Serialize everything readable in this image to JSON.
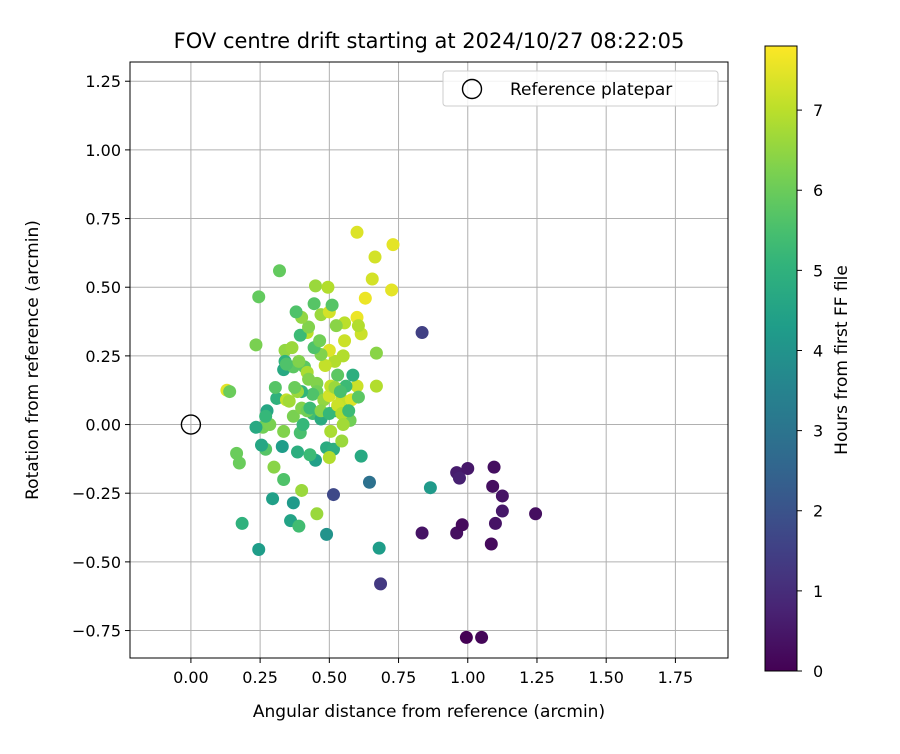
{
  "chart_data": {
    "type": "scatter",
    "title": "FOV centre drift starting at 2024/10/27 08:22:05",
    "xlabel": "Angular distance from reference (arcmin)",
    "ylabel": "Rotation from reference (arcmin)",
    "xlim": [
      -0.22,
      1.94
    ],
    "ylim": [
      -0.85,
      1.32
    ],
    "xticks": [
      0.0,
      0.25,
      0.5,
      0.75,
      1.0,
      1.25,
      1.5,
      1.75
    ],
    "xtick_labels": [
      "0.00",
      "0.25",
      "0.50",
      "0.75",
      "1.00",
      "1.25",
      "1.50",
      "1.75"
    ],
    "yticks": [
      -0.75,
      -0.5,
      -0.25,
      0.0,
      0.25,
      0.5,
      0.75,
      1.0,
      1.25
    ],
    "ytick_labels": [
      "−0.75",
      "−0.50",
      "−0.25",
      "0.00",
      "0.25",
      "0.50",
      "0.75",
      "1.00",
      "1.25"
    ],
    "grid": true,
    "legend": {
      "placement": "top-right",
      "entries": [
        "Reference platepar"
      ]
    },
    "reference_point": {
      "x": 0.0,
      "y": 0.0,
      "label": "Reference platepar"
    },
    "colorbar": {
      "label": "Hours from first FF file",
      "colormap": "viridis",
      "range": [
        0,
        7.8
      ],
      "ticks": [
        0,
        1,
        2,
        3,
        4,
        5,
        6,
        7
      ],
      "tick_labels": [
        "0",
        "1",
        "2",
        "3",
        "4",
        "5",
        "6",
        "7"
      ]
    },
    "points": [
      [
        0.995,
        -0.775,
        0.0
      ],
      [
        1.05,
        -0.775,
        0.1
      ],
      [
        0.96,
        -0.395,
        0.3
      ],
      [
        1.085,
        -0.435,
        0.2
      ],
      [
        1.09,
        -0.225,
        0.3
      ],
      [
        1.125,
        -0.26,
        0.4
      ],
      [
        1.125,
        -0.315,
        0.5
      ],
      [
        1.245,
        -0.325,
        0.3
      ],
      [
        1.1,
        -0.36,
        0.4
      ],
      [
        0.98,
        -0.365,
        0.2
      ],
      [
        0.835,
        -0.395,
        0.4
      ],
      [
        0.96,
        -0.175,
        0.6
      ],
      [
        1.0,
        -0.16,
        0.5
      ],
      [
        1.095,
        -0.155,
        0.3
      ],
      [
        0.97,
        -0.195,
        0.7
      ],
      [
        0.835,
        0.335,
        1.5
      ],
      [
        0.685,
        -0.58,
        1.3
      ],
      [
        0.515,
        -0.255,
        1.7
      ],
      [
        0.645,
        -0.21,
        2.9
      ],
      [
        0.865,
        -0.23,
        4.2
      ],
      [
        0.68,
        -0.45,
        4.3
      ],
      [
        0.49,
        -0.4,
        4.0
      ],
      [
        0.245,
        -0.455,
        4.3
      ],
      [
        0.185,
        -0.36,
        5.0
      ],
      [
        0.295,
        -0.27,
        4.4
      ],
      [
        0.37,
        -0.285,
        4.2
      ],
      [
        0.36,
        -0.35,
        4.5
      ],
      [
        0.39,
        -0.37,
        5.4
      ],
      [
        0.455,
        -0.325,
        6.6
      ],
      [
        0.335,
        -0.2,
        5.6
      ],
      [
        0.4,
        -0.24,
        6.6
      ],
      [
        0.45,
        -0.13,
        4.4
      ],
      [
        0.49,
        -0.085,
        4.8
      ],
      [
        0.515,
        -0.09,
        4.9
      ],
      [
        0.615,
        -0.115,
        4.7
      ],
      [
        0.545,
        -0.06,
        6.6
      ],
      [
        0.5,
        -0.12,
        6.9
      ],
      [
        0.43,
        -0.11,
        5.3
      ],
      [
        0.385,
        -0.1,
        4.9
      ],
      [
        0.27,
        -0.09,
        5.7
      ],
      [
        0.255,
        -0.075,
        4.6
      ],
      [
        0.33,
        -0.08,
        4.3
      ],
      [
        0.3,
        -0.155,
        6.4
      ],
      [
        0.165,
        -0.105,
        6.0
      ],
      [
        0.175,
        -0.14,
        6.0
      ],
      [
        0.26,
        -0.01,
        6.1
      ],
      [
        0.235,
        -0.01,
        4.7
      ],
      [
        0.285,
        0.0,
        6.2
      ],
      [
        0.335,
        -0.025,
        6.3
      ],
      [
        0.395,
        -0.03,
        5.5
      ],
      [
        0.405,
        0.0,
        5.2
      ],
      [
        0.44,
        0.04,
        5.4
      ],
      [
        0.47,
        0.02,
        4.8
      ],
      [
        0.505,
        -0.025,
        6.8
      ],
      [
        0.525,
        0.05,
        5.0
      ],
      [
        0.55,
        0.06,
        5.6
      ],
      [
        0.575,
        0.015,
        6.1
      ],
      [
        0.545,
        0.09,
        7.1
      ],
      [
        0.58,
        0.09,
        7.4
      ],
      [
        0.6,
        0.14,
        7.2
      ],
      [
        0.56,
        0.14,
        5.3
      ],
      [
        0.585,
        0.18,
        4.9
      ],
      [
        0.53,
        0.18,
        5.8
      ],
      [
        0.52,
        0.23,
        6.9
      ],
      [
        0.55,
        0.25,
        6.9
      ],
      [
        0.5,
        0.27,
        7.4
      ],
      [
        0.485,
        0.215,
        7.1
      ],
      [
        0.47,
        0.255,
        6.3
      ],
      [
        0.445,
        0.28,
        5.6
      ],
      [
        0.465,
        0.305,
        6.1
      ],
      [
        0.42,
        0.335,
        7.0
      ],
      [
        0.395,
        0.325,
        5.3
      ],
      [
        0.425,
        0.355,
        6.3
      ],
      [
        0.445,
        0.44,
        5.7
      ],
      [
        0.4,
        0.39,
        6.5
      ],
      [
        0.38,
        0.41,
        5.6
      ],
      [
        0.47,
        0.4,
        6.6
      ],
      [
        0.5,
        0.41,
        7.3
      ],
      [
        0.51,
        0.435,
        5.7
      ],
      [
        0.45,
        0.505,
        6.6
      ],
      [
        0.495,
        0.5,
        6.9
      ],
      [
        0.555,
        0.37,
        7.0
      ],
      [
        0.525,
        0.36,
        6.4
      ],
      [
        0.6,
        0.39,
        7.6
      ],
      [
        0.615,
        0.33,
        7.2
      ],
      [
        0.605,
        0.36,
        6.9
      ],
      [
        0.555,
        0.305,
        7.2
      ],
      [
        0.63,
        0.46,
        7.6
      ],
      [
        0.655,
        0.53,
        7.3
      ],
      [
        0.665,
        0.61,
        7.3
      ],
      [
        0.725,
        0.49,
        7.5
      ],
      [
        0.6,
        0.7,
        7.4
      ],
      [
        0.73,
        0.655,
        7.5
      ],
      [
        0.32,
        0.56,
        5.9
      ],
      [
        0.245,
        0.465,
        5.9
      ],
      [
        0.235,
        0.29,
        6.2
      ],
      [
        0.34,
        0.27,
        6.5
      ],
      [
        0.365,
        0.28,
        6.6
      ],
      [
        0.34,
        0.23,
        5.0
      ],
      [
        0.335,
        0.2,
        4.7
      ],
      [
        0.37,
        0.21,
        5.8
      ],
      [
        0.41,
        0.21,
        5.8
      ],
      [
        0.42,
        0.19,
        6.8
      ],
      [
        0.425,
        0.165,
        6.3
      ],
      [
        0.455,
        0.15,
        6.3
      ],
      [
        0.455,
        0.12,
        6.1
      ],
      [
        0.44,
        0.11,
        5.6
      ],
      [
        0.48,
        0.09,
        6.5
      ],
      [
        0.5,
        0.105,
        7.3
      ],
      [
        0.505,
        0.14,
        7.1
      ],
      [
        0.52,
        0.135,
        6.6
      ],
      [
        0.54,
        0.12,
        5.5
      ],
      [
        0.4,
        0.12,
        5.1
      ],
      [
        0.385,
        0.12,
        6.6
      ],
      [
        0.375,
        0.135,
        6.0
      ],
      [
        0.31,
        0.095,
        5.0
      ],
      [
        0.305,
        0.135,
        5.7
      ],
      [
        0.275,
        0.05,
        4.6
      ],
      [
        0.27,
        0.03,
        5.2
      ],
      [
        0.345,
        0.09,
        7.1
      ],
      [
        0.355,
        0.085,
        6.7
      ],
      [
        0.37,
        0.03,
        6.2
      ],
      [
        0.4,
        0.06,
        6.3
      ],
      [
        0.42,
        0.05,
        6.1
      ],
      [
        0.43,
        0.06,
        5.3
      ],
      [
        0.47,
        0.05,
        6.4
      ],
      [
        0.5,
        0.04,
        5.2
      ],
      [
        0.53,
        0.07,
        7.2
      ],
      [
        0.545,
        0.04,
        6.9
      ],
      [
        0.57,
        0.05,
        5.3
      ],
      [
        0.55,
        0.0,
        6.7
      ],
      [
        0.13,
        0.125,
        7.5
      ],
      [
        0.14,
        0.12,
        6.0
      ],
      [
        0.67,
        0.14,
        6.9
      ],
      [
        0.67,
        0.26,
        6.4
      ],
      [
        0.605,
        0.1,
        5.8
      ],
      [
        0.345,
        0.22,
        5.6
      ],
      [
        0.39,
        0.23,
        6.3
      ]
    ]
  },
  "colors": {
    "reference_marker": "#000000",
    "grid": "#b0b0b0",
    "axes": "#000000",
    "viridis_stops": [
      "#440154",
      "#482878",
      "#3e4989",
      "#31688e",
      "#26828e",
      "#1f9e89",
      "#35b779",
      "#6ece58",
      "#b5de2b",
      "#fde725"
    ]
  }
}
